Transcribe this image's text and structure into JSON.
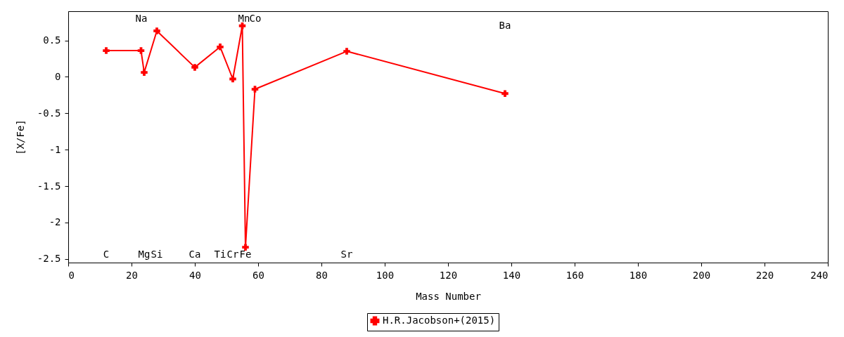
{
  "chart_data": {
    "type": "line",
    "xlabel": "Mass Number",
    "ylabel": "[X/Fe]",
    "x": [
      12,
      23,
      24,
      28,
      40,
      48,
      52,
      55,
      56,
      59,
      88,
      138
    ],
    "series": [
      {
        "name": "H.R.Jacobson+(2015)",
        "color": "#ff0000",
        "values": [
          0.36,
          0.36,
          0.06,
          0.63,
          0.13,
          0.41,
          -0.03,
          0.7,
          -2.34,
          -0.17,
          0.35,
          -0.23
        ]
      }
    ],
    "xlim": [
      0,
      240
    ],
    "xticks": [
      0,
      20,
      40,
      60,
      80,
      100,
      120,
      140,
      160,
      180,
      200,
      220,
      240
    ],
    "ylim": [
      -2.55,
      0.9
    ],
    "yticks": [
      -2.5,
      -2,
      -1.5,
      -1,
      -0.5,
      0,
      0.5
    ],
    "annotations": [
      "C",
      "Na",
      "Mg",
      "Si",
      "Ca",
      "Ti",
      "Cr",
      "Mn",
      "Fe",
      "Co",
      "Sr",
      "Ba"
    ],
    "marker": "cross",
    "grid": false,
    "legend": "bottom"
  }
}
